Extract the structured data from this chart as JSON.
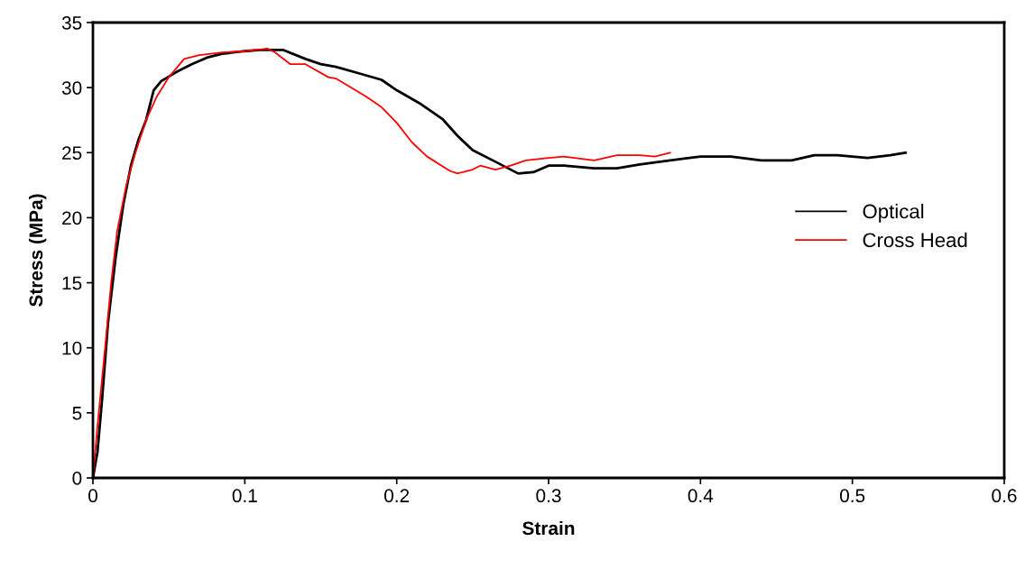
{
  "chart_data": {
    "type": "line",
    "xlabel": "Strain",
    "ylabel": "Stress (MPa)",
    "xlim": [
      0,
      0.6
    ],
    "xticks": [
      {
        "value": 0,
        "label": "0"
      },
      0.1,
      0.2,
      0.3,
      0.4,
      0.5,
      0.6
    ],
    "ylim": [
      0,
      35
    ],
    "yticks": [
      0,
      5,
      10,
      15,
      20,
      25,
      30,
      35
    ],
    "grid": false,
    "legend": "right",
    "marker": "none",
    "line_style": "solid",
    "series": [
      {
        "name": "Optical",
        "color": "#000000",
        "x": [
          0,
          0.003,
          0.006,
          0.01,
          0.015,
          0.02,
          0.025,
          0.03,
          0.035,
          0.04,
          0.045,
          0.055,
          0.065,
          0.075,
          0.085,
          0.1,
          0.11,
          0.125,
          0.14,
          0.15,
          0.16,
          0.175,
          0.19,
          0.2,
          0.215,
          0.23,
          0.24,
          0.25,
          0.265,
          0.28,
          0.29,
          0.3,
          0.31,
          0.33,
          0.345,
          0.36,
          0.38,
          0.4,
          0.42,
          0.44,
          0.46,
          0.475,
          0.49,
          0.51,
          0.525,
          0.535
        ],
        "values": [
          0,
          2,
          6,
          12,
          17,
          21,
          24,
          26,
          27.5,
          29.8,
          30.5,
          31.2,
          31.8,
          32.3,
          32.6,
          32.8,
          32.9,
          32.9,
          32.2,
          31.8,
          31.6,
          31.1,
          30.6,
          29.8,
          28.8,
          27.6,
          26.3,
          25.2,
          24.3,
          23.4,
          23.5,
          24.0,
          24.0,
          23.8,
          23.8,
          24.1,
          24.4,
          24.7,
          24.7,
          24.4,
          24.4,
          24.8,
          24.8,
          24.6,
          24.8,
          25.0
        ]
      },
      {
        "name": "Cross Head",
        "color": "#ff0000",
        "x": [
          0,
          0.003,
          0.008,
          0.012,
          0.016,
          0.022,
          0.028,
          0.035,
          0.042,
          0.05,
          0.06,
          0.07,
          0.085,
          0.1,
          0.115,
          0.12,
          0.13,
          0.14,
          0.155,
          0.16,
          0.18,
          0.19,
          0.2,
          0.21,
          0.22,
          0.235,
          0.24,
          0.25,
          0.255,
          0.265,
          0.275,
          0.285,
          0.3,
          0.31,
          0.33,
          0.345,
          0.36,
          0.37,
          0.38
        ],
        "values": [
          0,
          4,
          10,
          15,
          19,
          22.5,
          25,
          27.5,
          29.3,
          30.8,
          32.2,
          32.5,
          32.7,
          32.8,
          33.0,
          32.7,
          31.8,
          31.8,
          30.8,
          30.7,
          29.3,
          28.5,
          27.3,
          25.8,
          24.7,
          23.6,
          23.4,
          23.7,
          24.0,
          23.7,
          24.0,
          24.4,
          24.6,
          24.7,
          24.4,
          24.8,
          24.8,
          24.7,
          25.0
        ]
      }
    ]
  }
}
